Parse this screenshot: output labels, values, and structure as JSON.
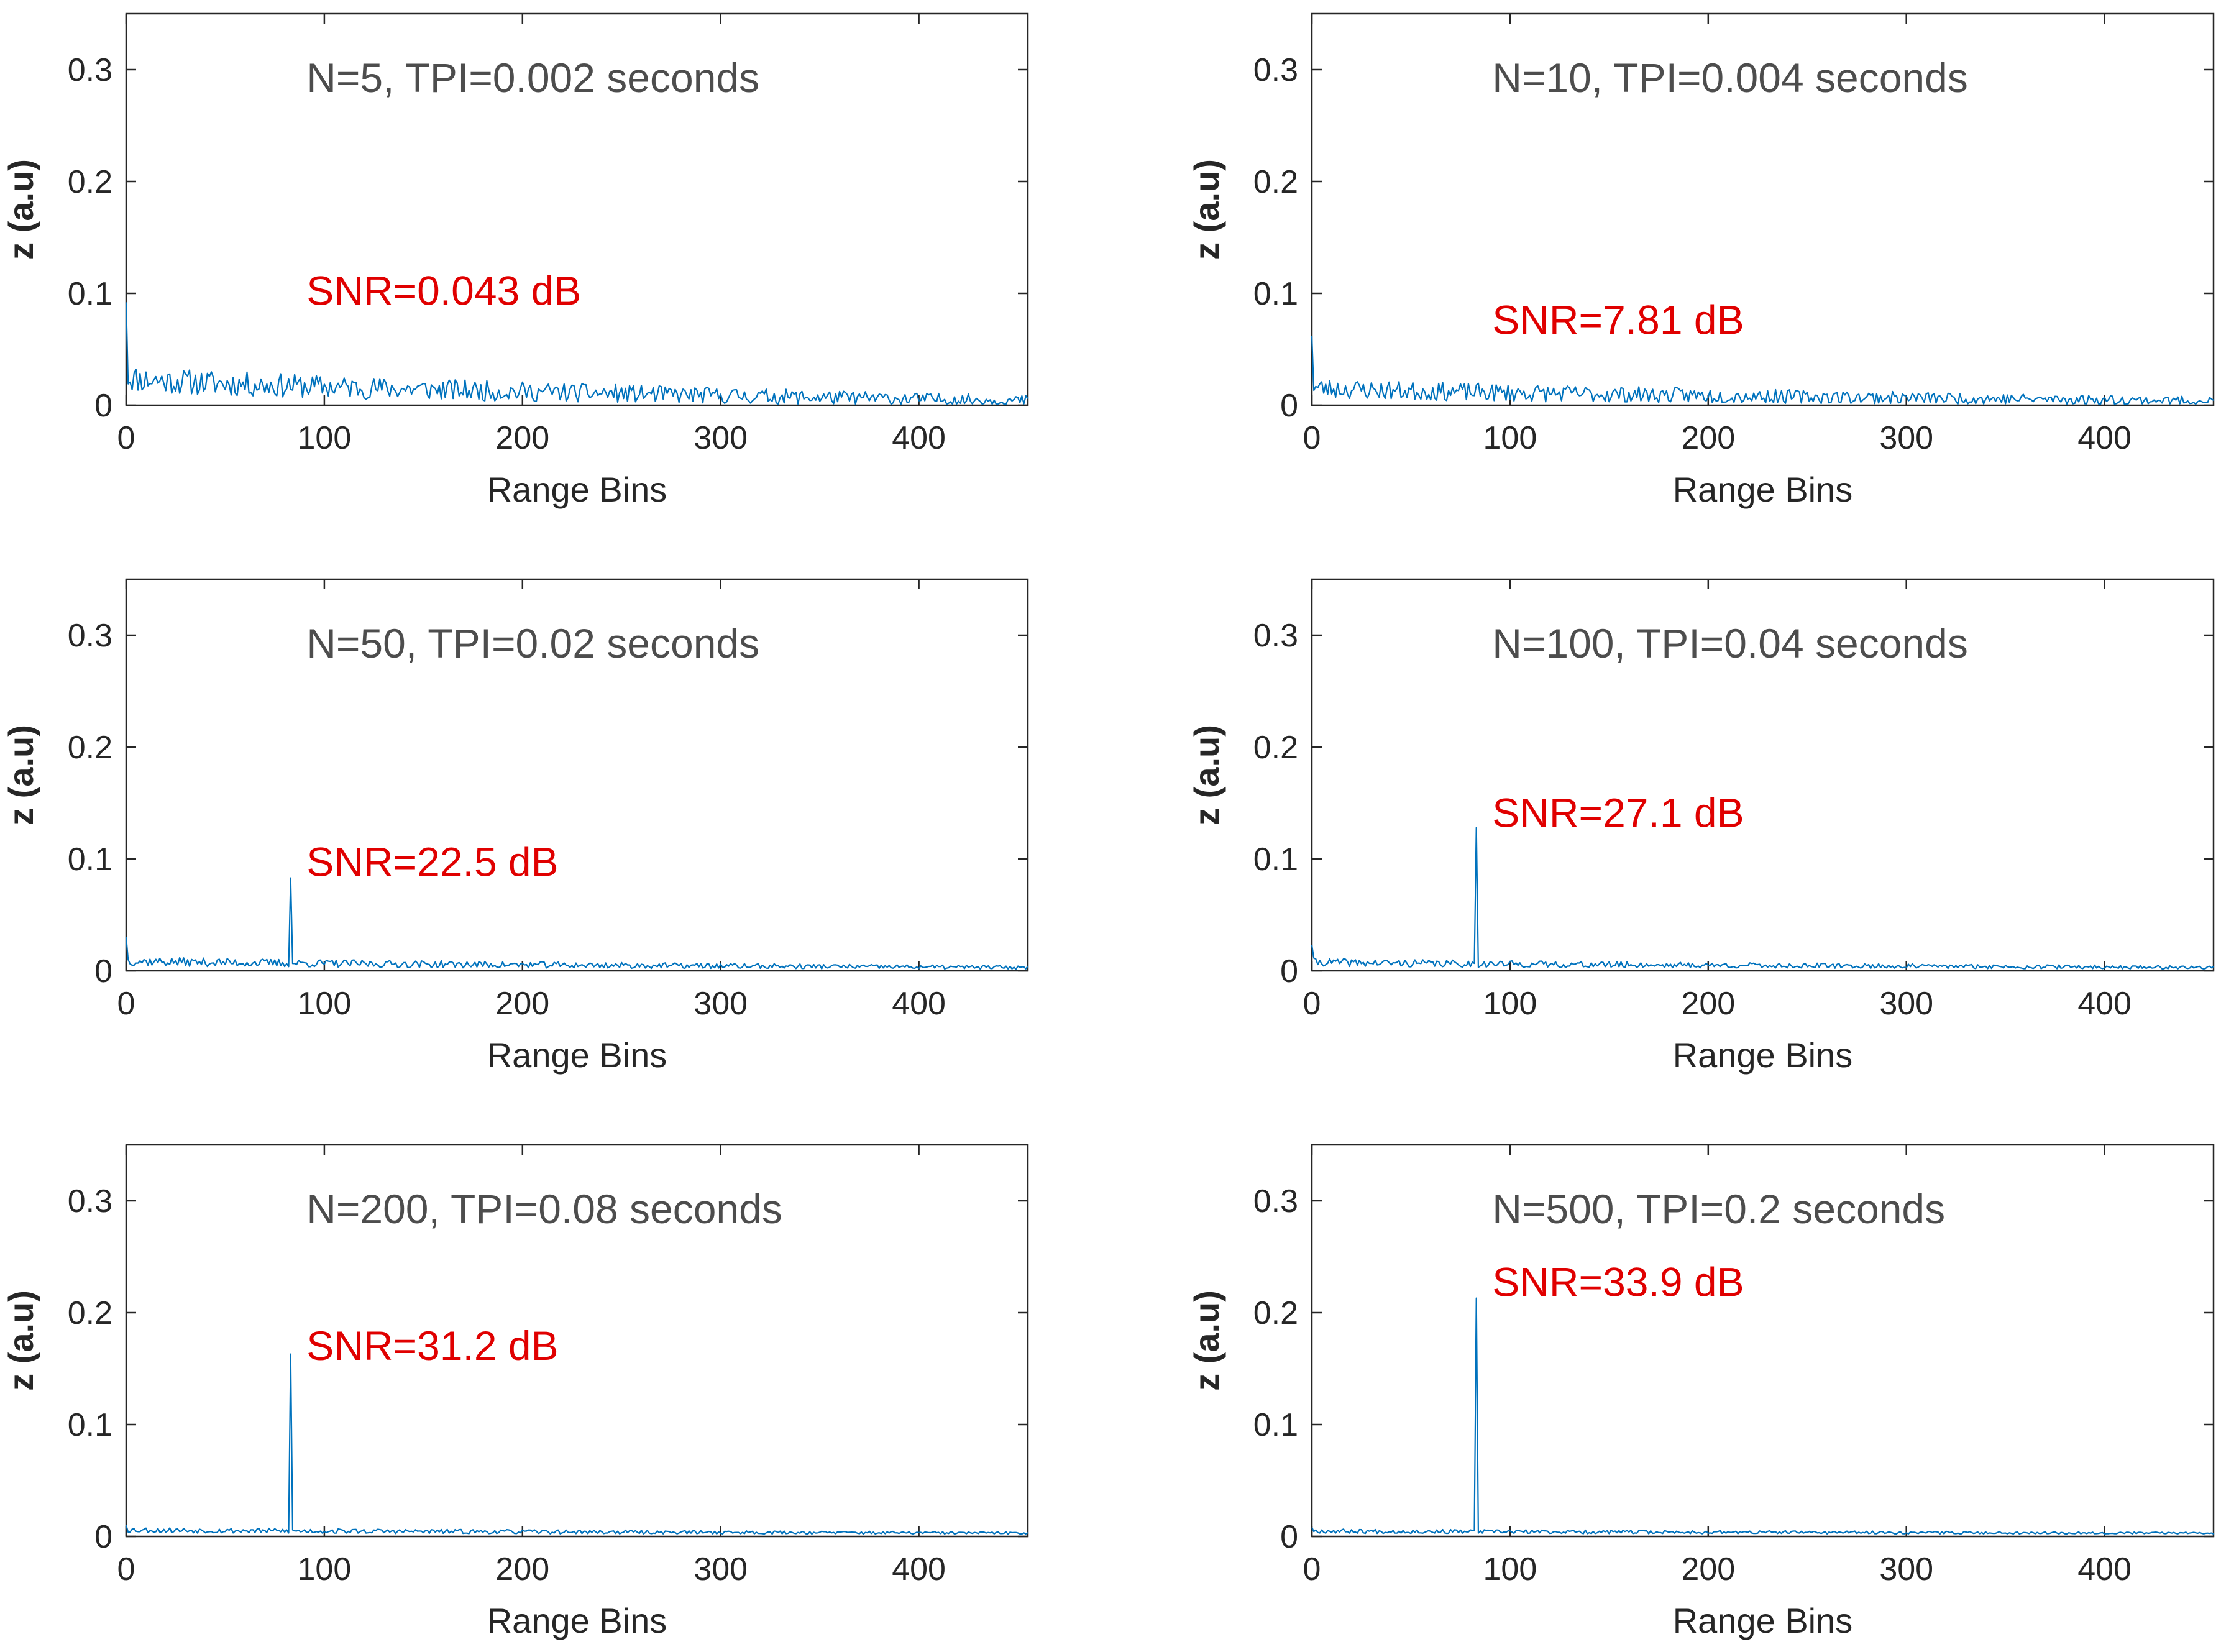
{
  "colors": {
    "line": "#0072BD",
    "snr": "#e00000",
    "axis": "#262626",
    "title_text": "#4d4d4d"
  },
  "chart_data": [
    {
      "type": "line",
      "title": "N=5, TPI=0.002 seconds",
      "snr_label": "SNR=0.043 dB",
      "snr_value_y": 0.103,
      "xlabel": "Range Bins",
      "ylabel": "z (a.u)",
      "xlim": [
        0,
        455
      ],
      "ylim": [
        0,
        0.35
      ],
      "xticks": [
        0,
        100,
        200,
        300,
        400
      ],
      "xtick_labels": [
        "0",
        "100",
        "200",
        "300",
        "400"
      ],
      "yticks": [
        0,
        0.1,
        0.2,
        0.3
      ],
      "ytick_labels": [
        "0",
        "0.1",
        "0.2",
        "0.3"
      ],
      "peak_bin": 0,
      "peak_value": 0.092,
      "noise_level_start": 0.025,
      "noise_level_end": 0.004,
      "noise_amplitude": 0.012,
      "seed": 11
    },
    {
      "type": "line",
      "title": "N=10, TPI=0.004 seconds",
      "snr_label": "SNR=7.81 dB",
      "snr_value_y": 0.077,
      "xlabel": "Range Bins",
      "ylabel": "z (a.u)",
      "xlim": [
        0,
        455
      ],
      "ylim": [
        0,
        0.35
      ],
      "xticks": [
        0,
        100,
        200,
        300,
        400
      ],
      "xtick_labels": [
        "0",
        "100",
        "200",
        "300",
        "400"
      ],
      "yticks": [
        0,
        0.1,
        0.2,
        0.3
      ],
      "ytick_labels": [
        "0",
        "0.1",
        "0.2",
        "0.3"
      ],
      "peak_bin": 0,
      "peak_value": 0.062,
      "noise_level_start": 0.016,
      "noise_level_end": 0.004,
      "noise_amplitude": 0.009,
      "seed": 23
    },
    {
      "type": "line",
      "title": "N=50, TPI=0.02 seconds",
      "snr_label": "SNR=22.5 dB",
      "snr_value_y": 0.098,
      "xlabel": "Range Bins",
      "ylabel": "z (a.u)",
      "xlim": [
        0,
        455
      ],
      "ylim": [
        0,
        0.35
      ],
      "xticks": [
        0,
        100,
        200,
        300,
        400
      ],
      "xtick_labels": [
        "0",
        "100",
        "200",
        "300",
        "400"
      ],
      "yticks": [
        0,
        0.1,
        0.2,
        0.3
      ],
      "ytick_labels": [
        "0",
        "0.1",
        "0.2",
        "0.3"
      ],
      "peak_bin": 83,
      "peak_value": 0.083,
      "start_spike": 0.03,
      "noise_level_start": 0.009,
      "noise_level_end": 0.003,
      "noise_amplitude": 0.004,
      "seed": 37
    },
    {
      "type": "line",
      "title": "N=100, TPI=0.04 seconds",
      "snr_label": "SNR=27.1 dB",
      "snr_value_y": 0.142,
      "xlabel": "Range Bins",
      "ylabel": "z (a.u)",
      "xlim": [
        0,
        455
      ],
      "ylim": [
        0,
        0.35
      ],
      "xticks": [
        0,
        100,
        200,
        300,
        400
      ],
      "xtick_labels": [
        "0",
        "100",
        "200",
        "300",
        "400"
      ],
      "yticks": [
        0,
        0.1,
        0.2,
        0.3
      ],
      "ytick_labels": [
        "0",
        "0.1",
        "0.2",
        "0.3"
      ],
      "peak_bin": 83,
      "peak_value": 0.128,
      "start_spike": 0.023,
      "noise_level_start": 0.008,
      "noise_level_end": 0.003,
      "noise_amplitude": 0.0035,
      "seed": 41
    },
    {
      "type": "line",
      "title": "N=200, TPI=0.08 seconds",
      "snr_label": "SNR=31.2 dB",
      "snr_value_y": 0.171,
      "xlabel": "Range Bins",
      "ylabel": "z (a.u)",
      "xlim": [
        0,
        455
      ],
      "ylim": [
        0,
        0.35
      ],
      "xticks": [
        0,
        100,
        200,
        300,
        400
      ],
      "xtick_labels": [
        "0",
        "100",
        "200",
        "300",
        "400"
      ],
      "yticks": [
        0,
        0.1,
        0.2,
        0.3
      ],
      "ytick_labels": [
        "0",
        "0.1",
        "0.2",
        "0.3"
      ],
      "peak_bin": 83,
      "peak_value": 0.163,
      "start_spike": 0.01,
      "noise_level_start": 0.006,
      "noise_level_end": 0.003,
      "noise_amplitude": 0.0025,
      "seed": 53
    },
    {
      "type": "line",
      "title": "N=500, TPI=0.2 seconds",
      "snr_label": "SNR=33.9 dB",
      "snr_value_y": 0.228,
      "xlabel": "Range Bins",
      "ylabel": "z (a.u)",
      "xlim": [
        0,
        455
      ],
      "ylim": [
        0,
        0.35
      ],
      "xticks": [
        0,
        100,
        200,
        300,
        400
      ],
      "xtick_labels": [
        "0",
        "100",
        "200",
        "300",
        "400"
      ],
      "yticks": [
        0,
        0.1,
        0.2,
        0.3
      ],
      "ytick_labels": [
        "0",
        "0.1",
        "0.2",
        "0.3"
      ],
      "peak_bin": 83,
      "peak_value": 0.213,
      "start_spike": 0.008,
      "noise_level_start": 0.005,
      "noise_level_end": 0.003,
      "noise_amplitude": 0.002,
      "seed": 67
    }
  ]
}
